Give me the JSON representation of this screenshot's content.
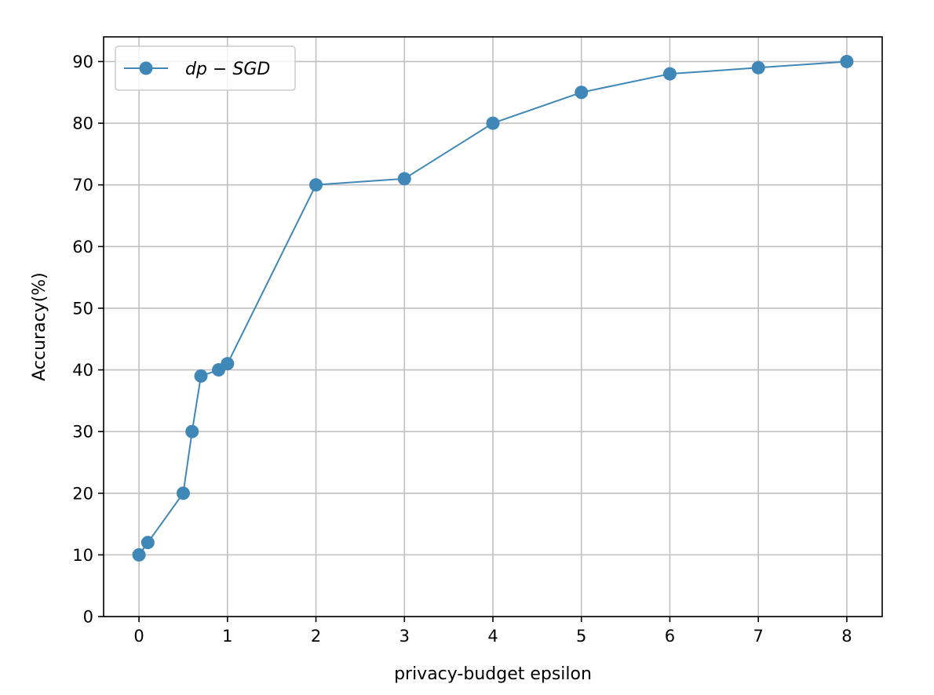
{
  "chart_data": {
    "type": "line",
    "xlabel": "privacy-budget epsilon",
    "ylabel": "Accuracy(%)",
    "xlim": [
      -0.4,
      8.4
    ],
    "ylim": [
      0,
      94
    ],
    "xticks": [
      0,
      1,
      2,
      3,
      4,
      5,
      6,
      7,
      8
    ],
    "yticks": [
      0,
      10,
      20,
      30,
      40,
      50,
      60,
      70,
      80,
      90
    ],
    "grid": true,
    "legend_position": "top-left",
    "series": [
      {
        "name": "dp − SGD",
        "color": "#3f87b7",
        "marker": "circle",
        "x": [
          0,
          0.1,
          0.5,
          0.6,
          0.7,
          0.9,
          1,
          2,
          3,
          4,
          5,
          6,
          7,
          8
        ],
        "y": [
          10,
          12,
          20,
          30,
          39,
          40,
          41,
          70,
          71,
          80,
          85,
          88,
          89,
          90
        ]
      }
    ]
  }
}
